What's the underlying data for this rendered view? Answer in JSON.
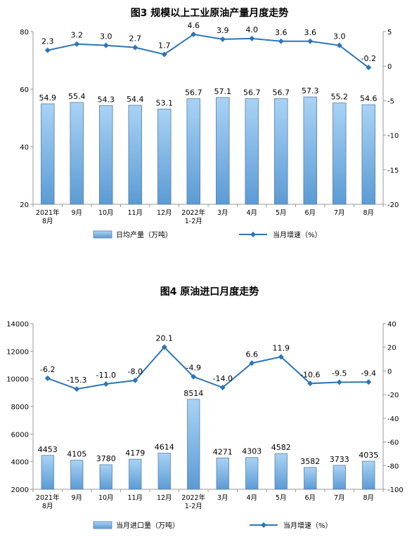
{
  "colors": {
    "bar_fill_top": "#a9d3f5",
    "bar_fill_bottom": "#5b9bd5",
    "bar_stroke": "#5a7fa3",
    "line": "#2e75b6",
    "axis": "#999999"
  },
  "chart_data": [
    {
      "type": "bar",
      "title": "图3  规模以上工业原油产量月度走势",
      "categories": [
        "2021年\n8月",
        "9月",
        "10月",
        "11月",
        "12月",
        "2022年\n1-2月",
        "3月",
        "4月",
        "5月",
        "6月",
        "7月",
        "8月"
      ],
      "series": [
        {
          "name": "日均产量（万吨）",
          "type": "bar",
          "axis": "left",
          "values": [
            54.9,
            55.4,
            54.3,
            54.4,
            53.1,
            56.7,
            57.1,
            56.7,
            56.7,
            57.3,
            55.2,
            54.6
          ],
          "labels": [
            "54.9",
            "55.4",
            "54.3",
            "54.4",
            "53.1",
            "56.7",
            "57.1",
            "56.7",
            "56.7",
            "57.3",
            "55.2",
            "54.6"
          ]
        },
        {
          "name": "当月增速（%）",
          "type": "line",
          "axis": "right",
          "values": [
            2.3,
            3.2,
            3.0,
            2.7,
            1.7,
            4.6,
            3.9,
            4.0,
            3.6,
            3.6,
            3.0,
            -0.2
          ],
          "labels": [
            "2.3",
            "3.2",
            "3.0",
            "2.7",
            "1.7",
            "4.6",
            "3.9",
            "4.0",
            "3.6",
            "3.6",
            "3.0",
            "-0.2"
          ]
        }
      ],
      "y_left": {
        "range": [
          20,
          80
        ],
        "ticks": [
          "20",
          "40",
          "60",
          "80"
        ]
      },
      "y_right": {
        "range": [
          -20,
          5
        ],
        "ticks": [
          "5",
          "0",
          "-5",
          "-10",
          "-15",
          "-20"
        ]
      },
      "legend_position": "bottom",
      "grid": false
    },
    {
      "type": "bar",
      "title": "图4  原油进口月度走势",
      "categories": [
        "2021年\n8月",
        "9月",
        "10月",
        "11月",
        "12月",
        "2022年\n1-2月",
        "3月",
        "4月",
        "5月",
        "6月",
        "7月",
        "8月"
      ],
      "series": [
        {
          "name": "当月进口量（万吨）",
          "type": "bar",
          "axis": "left",
          "values": [
            4453,
            4105,
            3780,
            4179,
            4614,
            8514,
            4271,
            4303,
            4582,
            3582,
            3733,
            4035
          ],
          "labels": [
            "4453",
            "4105",
            "3780",
            "4179",
            "4614",
            "8514",
            "4271",
            "4303",
            "4582",
            "3582",
            "3733",
            "4035"
          ]
        },
        {
          "name": "当月增速（%）",
          "type": "line",
          "axis": "right",
          "values": [
            -6.2,
            -15.3,
            -11.0,
            -8.0,
            20.1,
            -4.9,
            -14.0,
            6.6,
            11.9,
            -10.6,
            -9.5,
            -9.4
          ],
          "labels": [
            "-6.2",
            "-15.3",
            "-11.0",
            "-8.0",
            "20.1",
            "-4.9",
            "-14.0",
            "6.6",
            "11.9",
            "-10.6",
            "-9.5",
            "-9.4"
          ]
        }
      ],
      "y_left": {
        "range": [
          2000,
          14000
        ],
        "ticks": [
          "2000",
          "4000",
          "6000",
          "8000",
          "10000",
          "12000",
          "14000"
        ]
      },
      "y_right": {
        "range": [
          -100,
          40
        ],
        "ticks": [
          "40",
          "20",
          "0",
          "-20",
          "-40",
          "-60",
          "-80",
          "-100"
        ]
      },
      "legend_position": "bottom",
      "grid": false
    }
  ]
}
